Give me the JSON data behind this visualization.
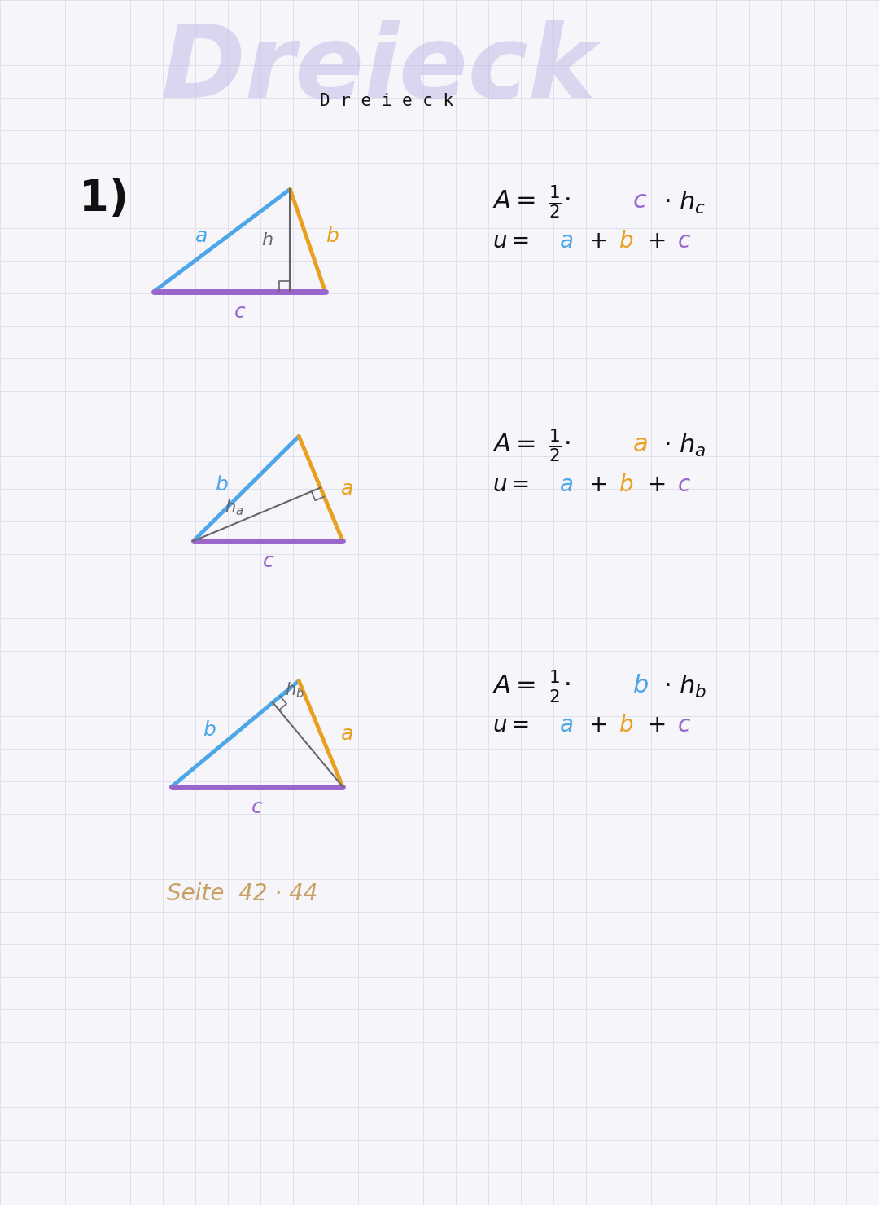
{
  "bg_color": "#f5f5fa",
  "grid_color": "#d8d8e8",
  "title_shadow": "Dreieck",
  "title_text": "D r e i e c k",
  "title_shadow_color": "#c0b8e8",
  "title_text_color": "#111111",
  "label_1": "1)",
  "color_a": "#4da6e8",
  "color_b": "#e8a020",
  "color_c": "#9966cc",
  "color_h": "#666666",
  "color_formula_black": "#111111",
  "color_seite": "#c8a060",
  "seite_text": "Seite  42 · 44"
}
